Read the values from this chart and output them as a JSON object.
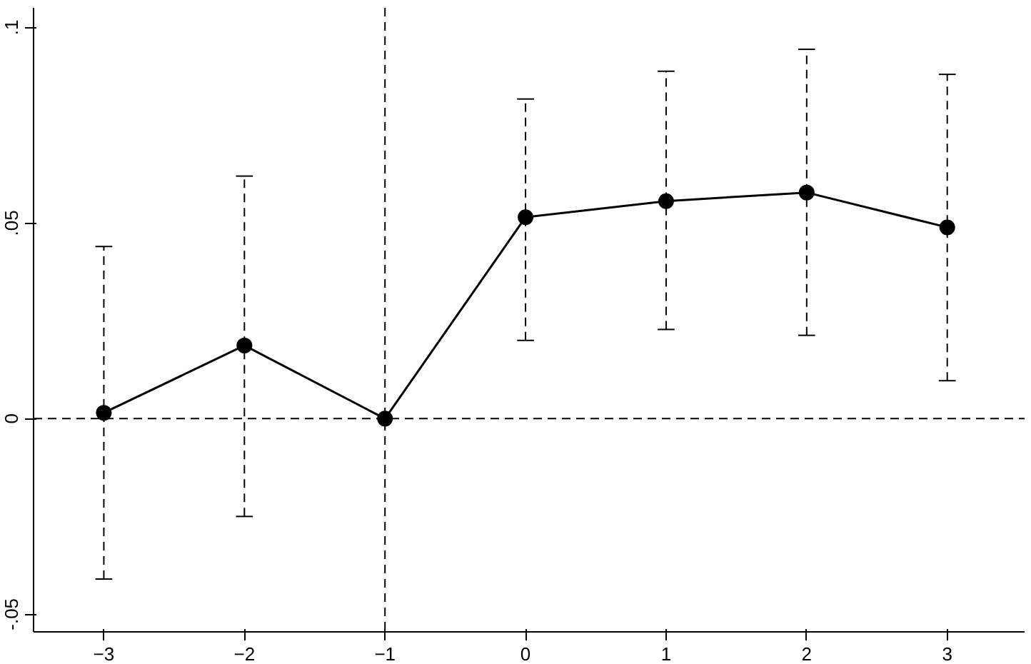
{
  "chart_data": {
    "type": "line",
    "x": [
      -3,
      -2,
      -1,
      0,
      1,
      2,
      3
    ],
    "series": [
      {
        "color": "#000000",
        "values": [
          0.0015,
          0.0187,
          0,
          0.0515,
          0.0556,
          0.0578,
          0.0489
        ],
        "errors": [
          [
            -0.041,
            0.044
          ],
          [
            -0.025,
            0.062
          ],
          null,
          [
            0.02,
            0.0817
          ],
          [
            0.0228,
            0.0888
          ],
          [
            0.0213,
            0.0944
          ],
          [
            0.0097,
            0.088
          ]
        ]
      }
    ],
    "marker": "circle",
    "line_style": "solid",
    "grid": false,
    "xlim": [
      -3.5,
      3.55
    ],
    "ylim": [
      -0.0545,
      0.105
    ],
    "xticks": [
      -3,
      -2,
      -1,
      0,
      1,
      2,
      3
    ],
    "yticks": [
      {
        "value": -0.05,
        "label": "-.05"
      },
      {
        "value": 0,
        "label": "0"
      },
      {
        "value": 0.05,
        "label": ".05"
      },
      {
        "value": 0.1,
        "label": ".1"
      }
    ],
    "ref_lines": [
      {
        "axis": "y",
        "value": 0,
        "line_style": "dashed",
        "color": "#000000"
      },
      {
        "axis": "x",
        "value": -1,
        "line_style": "dashed",
        "color": "#000000"
      }
    ]
  }
}
